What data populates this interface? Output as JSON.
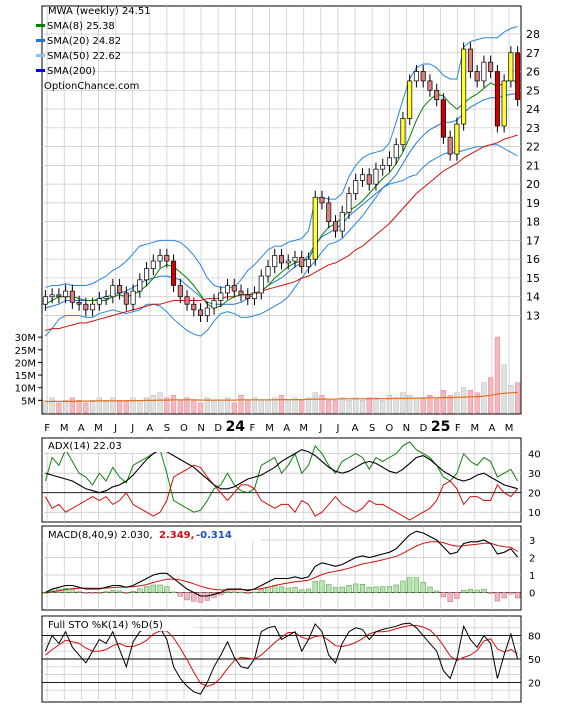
{
  "chart_data": {
    "type": "stock-chart",
    "symbol_label": "MWA (weekly) 24.51",
    "watermark": "OptionChance.com",
    "x_month_labels": [
      "F",
      "M",
      "A",
      "M",
      "J",
      "J",
      "A",
      "S",
      "O",
      "N",
      "D",
      "24",
      "F",
      "M",
      "A",
      "M",
      "J",
      "J",
      "A",
      "S",
      "O",
      "N",
      "D",
      "25",
      "F",
      "M",
      "A",
      "M"
    ],
    "main": {
      "y_ticks": [
        13,
        14,
        15,
        16,
        17,
        18,
        19,
        20,
        21,
        22,
        23,
        24,
        25,
        26,
        27,
        28
      ],
      "ylim": [
        11.8,
        28.8
      ],
      "legend": [
        {
          "label": "MWA (weekly) 24.51",
          "color": "#000000"
        },
        {
          "label": "SMA(8) 25.38",
          "color": "#008000"
        },
        {
          "label": "SMA(20) 24.82",
          "color": "#1e78d0"
        },
        {
          "label": "SMA(50) 22.62",
          "color": "#88c0ff"
        },
        {
          "label": "SMA(200)",
          "color": "#0000ff"
        }
      ],
      "closes": [
        14.0,
        14.1,
        14.0,
        14.3,
        13.7,
        13.6,
        13.3,
        13.6,
        13.9,
        14.0,
        14.6,
        14.2,
        13.6,
        14.3,
        14.9,
        15.5,
        15.9,
        16.2,
        15.9,
        14.6,
        14.0,
        13.6,
        13.3,
        13.0,
        13.4,
        13.8,
        14.2,
        14.6,
        14.3,
        14.1,
        13.9,
        14.2,
        15.1,
        15.6,
        16.2,
        15.8,
        15.9,
        16.1,
        15.6,
        16.0,
        19.3,
        19.0,
        18.0,
        17.5,
        18.5,
        19.5,
        20.2,
        20.5,
        20.0,
        20.8,
        21.0,
        21.4,
        22.1,
        23.5,
        25.5,
        26.0,
        25.5,
        25.0,
        24.5,
        22.5,
        21.6,
        23.2,
        27.2,
        26.0,
        25.5,
        26.5,
        26.0,
        23.1,
        25.5,
        27.0,
        24.51
      ],
      "sma20_upper": [
        14.5,
        14.6,
        14.6,
        14.7,
        14.6,
        14.6,
        14.6,
        14.7,
        14.9,
        15.1,
        15.4,
        15.6,
        15.9,
        16.3,
        16.7,
        16.8,
        16.9,
        17.0,
        17.0,
        17.0,
        16.9,
        16.6,
        16.2,
        15.7,
        15.0,
        14.6,
        14.5,
        14.5,
        14.5,
        14.9,
        15.4,
        15.7,
        16.1,
        16.5,
        16.7,
        16.7,
        16.9,
        17.0,
        17.1,
        17.5,
        19.2,
        19.3,
        19.2,
        19.2,
        19.5,
        20.4,
        21.0,
        21.4,
        21.6,
        21.7,
        21.8,
        22.2,
        23.3,
        24.5,
        25.6,
        26.2,
        26.4,
        26.4,
        26.2,
        25.8,
        25.6,
        25.6,
        27.3,
        27.6,
        27.7,
        27.8,
        27.8,
        27.8,
        28.1,
        28.3,
        28.4
      ],
      "sma20_lower": [
        11.9,
        12.3,
        12.8,
        13.0,
        13.0,
        13.0,
        12.9,
        12.9,
        13.1,
        13.2,
        13.3,
        13.2,
        13.1,
        13.2,
        13.3,
        13.6,
        13.6,
        13.5,
        13.2,
        12.8,
        12.5,
        12.2,
        12.0,
        11.9,
        12.2,
        12.7,
        13.1,
        13.2,
        13.1,
        12.9,
        12.9,
        13.0,
        13.1,
        13.3,
        13.5,
        13.7,
        14.0,
        14.5,
        15.0,
        15.5,
        15.9,
        16.4,
        16.8,
        16.9,
        17.1,
        17.5,
        17.9,
        18.3,
        18.8,
        19.3,
        19.8,
        20.0,
        20.1,
        20.2,
        20.4,
        20.5,
        20.9,
        21.2,
        21.4,
        21.6,
        21.7,
        21.7,
        21.8,
        21.9,
        22.0,
        22.0,
        22.1,
        22.1,
        21.9,
        21.7,
        21.5
      ],
      "sma20": [
        13.4,
        13.5,
        13.6,
        13.8,
        13.8,
        13.8,
        13.8,
        13.8,
        13.9,
        14.0,
        14.1,
        14.2,
        14.3,
        14.5,
        14.7,
        14.9,
        15.0,
        15.1,
        15.1,
        15.0,
        14.9,
        14.6,
        14.3,
        14.0,
        13.7,
        13.6,
        13.6,
        13.6,
        13.6,
        13.7,
        13.9,
        14.1,
        14.3,
        14.6,
        14.8,
        15.0,
        15.3,
        15.6,
        15.8,
        16.2,
        16.8,
        17.2,
        17.4,
        17.6,
        17.9,
        18.3,
        18.6,
        18.9,
        19.2,
        19.5,
        19.8,
        20.1,
        20.5,
        21.1,
        21.7,
        22.2,
        22.6,
        22.9,
        23.1,
        23.3,
        23.3,
        23.4,
        23.8,
        24.1,
        24.3,
        24.5,
        24.6,
        24.6,
        24.7,
        24.8,
        24.82
      ],
      "sma8": [
        13.6,
        13.8,
        14.0,
        14.0,
        14.0,
        13.9,
        13.8,
        13.8,
        13.8,
        13.8,
        14.0,
        14.1,
        14.0,
        14.1,
        14.3,
        14.6,
        15.0,
        15.5,
        15.7,
        15.6,
        15.3,
        15.0,
        14.6,
        14.1,
        13.6,
        13.4,
        13.5,
        13.8,
        14.0,
        14.1,
        14.1,
        14.1,
        14.3,
        14.6,
        15.0,
        15.3,
        15.6,
        15.8,
        15.9,
        16.0,
        16.7,
        17.3,
        17.7,
        17.9,
        18.2,
        18.6,
        18.8,
        19.1,
        19.5,
        19.9,
        20.3,
        20.6,
        21.1,
        21.7,
        22.5,
        23.4,
        24.1,
        24.5,
        24.8,
        24.7,
        24.3,
        24.0,
        24.3,
        24.6,
        24.8,
        25.1,
        25.4,
        25.2,
        25.4,
        25.6,
        25.38
      ],
      "sma50": [
        12.2,
        12.3,
        12.3,
        12.4,
        12.5,
        12.6,
        12.6,
        12.7,
        12.8,
        12.9,
        13.0,
        13.1,
        13.2,
        13.3,
        13.4,
        13.5,
        13.6,
        13.6,
        13.7,
        13.8,
        13.8,
        13.8,
        13.8,
        13.8,
        13.9,
        13.9,
        13.9,
        14.0,
        14.0,
        14.1,
        14.1,
        14.2,
        14.3,
        14.4,
        14.5,
        14.6,
        14.7,
        14.8,
        15.0,
        15.1,
        15.3,
        15.5,
        15.7,
        15.8,
        16.0,
        16.2,
        16.5,
        16.7,
        17.0,
        17.3,
        17.6,
        17.9,
        18.3,
        18.7,
        19.1,
        19.5,
        19.8,
        20.1,
        20.4,
        20.7,
        20.9,
        21.1,
        21.4,
        21.6,
        21.8,
        22.0,
        22.1,
        22.2,
        22.4,
        22.5,
        22.62
      ],
      "up_down_flags_note": "candles drawn from closes"
    },
    "volume": {
      "y_ticks": [
        "5M",
        "10M",
        "15M",
        "20M",
        "25M",
        "30M"
      ],
      "tick_values": [
        5,
        10,
        15,
        20,
        25,
        30
      ],
      "ylim": [
        0,
        34
      ],
      "values": [
        5,
        6,
        4,
        5,
        6,
        5,
        4,
        5,
        6,
        5,
        6,
        5,
        5,
        6,
        5,
        6,
        7,
        8,
        6,
        7,
        5,
        6,
        5,
        4,
        6,
        5,
        5,
        6,
        4,
        7,
        5,
        6,
        5,
        5,
        6,
        7,
        5,
        6,
        5,
        6,
        8,
        7,
        5,
        5,
        6,
        5,
        6,
        5,
        6,
        6,
        5,
        7,
        6,
        8,
        7,
        6,
        6,
        7,
        6,
        9,
        7,
        8,
        10,
        9,
        8,
        12,
        14,
        30,
        19,
        11,
        12
      ],
      "avg_line": [
        4.5,
        4.6,
        4.6,
        4.6,
        4.6,
        4.7,
        4.7,
        4.7,
        4.8,
        4.8,
        4.8,
        4.8,
        4.8,
        4.9,
        4.9,
        5.0,
        5.0,
        5.1,
        5.1,
        5.2,
        5.2,
        5.2,
        5.2,
        5.1,
        5.1,
        5.1,
        5.1,
        5.1,
        5.1,
        5.2,
        5.2,
        5.2,
        5.2,
        5.2,
        5.2,
        5.3,
        5.3,
        5.3,
        5.3,
        5.4,
        5.5,
        5.5,
        5.5,
        5.5,
        5.6,
        5.6,
        5.6,
        5.6,
        5.6,
        5.7,
        5.7,
        5.7,
        5.8,
        5.8,
        5.8,
        5.9,
        5.9,
        6.0,
        6.0,
        6.1,
        6.1,
        6.2,
        6.3,
        6.4,
        6.5,
        6.7,
        7.0,
        7.5,
        7.8,
        8.0,
        8.1
      ]
    },
    "adx": {
      "label": "ADX(14) 22.03",
      "y_ticks": [
        10,
        20,
        30,
        40
      ],
      "ylim": [
        5,
        48
      ],
      "adx": [
        30,
        29,
        28,
        27,
        26,
        24,
        22,
        21,
        20,
        21,
        23,
        24,
        26,
        29,
        33,
        37,
        40,
        42,
        41,
        39,
        37,
        35,
        33,
        30,
        27,
        24,
        22,
        22,
        23,
        25,
        27,
        28,
        29,
        31,
        33,
        36,
        38,
        40,
        42,
        41,
        39,
        36,
        33,
        31,
        30,
        31,
        33,
        35,
        36,
        35,
        33,
        31,
        30,
        32,
        35,
        38,
        39,
        37,
        34,
        31,
        29,
        27,
        26,
        27,
        29,
        30,
        28,
        26,
        24,
        23,
        22.03
      ],
      "plus_di": [
        26,
        38,
        34,
        42,
        36,
        30,
        28,
        24,
        30,
        26,
        33,
        28,
        25,
        34,
        36,
        38,
        40,
        42,
        30,
        16,
        14,
        12,
        10,
        11,
        16,
        22,
        24,
        30,
        24,
        21,
        20,
        22,
        34,
        36,
        38,
        30,
        34,
        40,
        30,
        34,
        44,
        40,
        34,
        30,
        36,
        38,
        40,
        38,
        32,
        38,
        36,
        38,
        40,
        44,
        46,
        42,
        40,
        38,
        34,
        28,
        26,
        30,
        40,
        36,
        34,
        38,
        36,
        28,
        30,
        32,
        26
      ],
      "minus_di": [
        18,
        12,
        14,
        10,
        12,
        14,
        16,
        18,
        16,
        18,
        14,
        16,
        20,
        14,
        12,
        10,
        8,
        10,
        16,
        28,
        30,
        32,
        34,
        33,
        28,
        24,
        20,
        16,
        20,
        24,
        24,
        22,
        16,
        14,
        12,
        14,
        14,
        10,
        16,
        14,
        8,
        10,
        14,
        18,
        14,
        12,
        10,
        12,
        16,
        14,
        14,
        12,
        10,
        8,
        6,
        8,
        10,
        12,
        16,
        24,
        26,
        22,
        14,
        18,
        18,
        16,
        16,
        24,
        20,
        18,
        22
      ]
    },
    "macd": {
      "label": "MACD(8,40,9) 2.030, 2.349, -0.314",
      "label_parts": [
        "MACD(8,40,9) 2.030,",
        "2.349,",
        "-0.314"
      ],
      "y_ticks": [
        0,
        1,
        2,
        3
      ],
      "ylim": [
        -1.0,
        3.8
      ],
      "macd": [
        0.0,
        0.2,
        0.3,
        0.4,
        0.4,
        0.3,
        0.2,
        0.2,
        0.2,
        0.3,
        0.4,
        0.4,
        0.3,
        0.4,
        0.6,
        0.8,
        1.0,
        1.1,
        1.1,
        0.8,
        0.5,
        0.2,
        0.0,
        -0.2,
        -0.2,
        -0.1,
        0.0,
        0.2,
        0.2,
        0.2,
        0.1,
        0.2,
        0.4,
        0.6,
        0.8,
        0.8,
        0.8,
        0.9,
        0.8,
        0.9,
        1.5,
        1.7,
        1.6,
        1.5,
        1.6,
        1.8,
        2.0,
        2.1,
        2.0,
        2.1,
        2.2,
        2.3,
        2.5,
        2.9,
        3.3,
        3.5,
        3.4,
        3.2,
        3.0,
        2.6,
        2.2,
        2.3,
        2.8,
        2.9,
        2.9,
        3.0,
        2.8,
        2.2,
        2.3,
        2.5,
        2.03
      ],
      "signal": [
        0.0,
        0.05,
        0.1,
        0.17,
        0.22,
        0.25,
        0.25,
        0.24,
        0.24,
        0.25,
        0.28,
        0.31,
        0.31,
        0.33,
        0.38,
        0.46,
        0.57,
        0.67,
        0.76,
        0.77,
        0.72,
        0.62,
        0.5,
        0.36,
        0.25,
        0.18,
        0.14,
        0.15,
        0.16,
        0.17,
        0.16,
        0.17,
        0.22,
        0.3,
        0.4,
        0.48,
        0.54,
        0.61,
        0.65,
        0.7,
        0.86,
        1.03,
        1.14,
        1.21,
        1.29,
        1.39,
        1.51,
        1.63,
        1.7,
        1.78,
        1.87,
        1.96,
        2.07,
        2.24,
        2.45,
        2.66,
        2.81,
        2.89,
        2.91,
        2.85,
        2.72,
        2.64,
        2.67,
        2.72,
        2.76,
        2.81,
        2.81,
        2.69,
        2.61,
        2.59,
        2.349
      ],
      "histogram": [
        0.0,
        0.15,
        0.2,
        0.23,
        0.18,
        0.05,
        -0.05,
        -0.04,
        -0.04,
        0.05,
        0.12,
        0.09,
        -0.01,
        0.07,
        0.22,
        0.34,
        0.43,
        0.43,
        0.34,
        0.03,
        -0.22,
        -0.42,
        -0.5,
        -0.56,
        -0.45,
        -0.28,
        -0.14,
        0.05,
        0.04,
        0.03,
        -0.06,
        0.03,
        0.18,
        0.3,
        0.4,
        0.32,
        0.26,
        0.29,
        0.15,
        0.2,
        0.64,
        0.67,
        0.46,
        0.29,
        0.31,
        0.41,
        0.49,
        0.47,
        0.3,
        0.32,
        0.33,
        0.34,
        0.43,
        0.66,
        0.85,
        0.84,
        0.59,
        0.31,
        0.09,
        -0.25,
        -0.52,
        -0.34,
        0.13,
        0.18,
        0.14,
        0.19,
        -0.01,
        -0.49,
        -0.31,
        -0.09,
        -0.314
      ]
    },
    "sto": {
      "label": "Full STO %K(14) %D(5)",
      "y_ticks": [
        20,
        50,
        80
      ],
      "ylim": [
        0,
        100
      ],
      "k": [
        60,
        80,
        70,
        85,
        65,
        55,
        45,
        60,
        75,
        70,
        85,
        62,
        40,
        72,
        85,
        90,
        92,
        90,
        75,
        40,
        25,
        15,
        8,
        5,
        20,
        40,
        55,
        72,
        52,
        40,
        38,
        50,
        85,
        90,
        92,
        75,
        80,
        85,
        60,
        75,
        95,
        85,
        55,
        45,
        70,
        85,
        90,
        88,
        75,
        85,
        88,
        90,
        92,
        95,
        96,
        90,
        80,
        70,
        60,
        35,
        25,
        50,
        92,
        75,
        65,
        80,
        70,
        25,
        55,
        82,
        50
      ],
      "d": [
        55,
        62,
        68,
        74,
        72,
        70,
        64,
        60,
        60,
        62,
        67,
        70,
        66,
        66,
        69,
        74,
        82,
        86,
        86,
        77,
        64,
        49,
        33,
        19,
        15,
        18,
        26,
        38,
        48,
        52,
        51,
        50,
        55,
        63,
        71,
        78,
        84,
        84,
        78,
        75,
        79,
        80,
        74,
        67,
        66,
        68,
        71,
        76,
        82,
        85,
        85,
        86,
        89,
        91,
        93,
        93,
        91,
        87,
        79,
        67,
        54,
        48,
        52,
        55,
        61,
        73,
        76,
        63,
        59,
        62,
        57
      ]
    }
  }
}
